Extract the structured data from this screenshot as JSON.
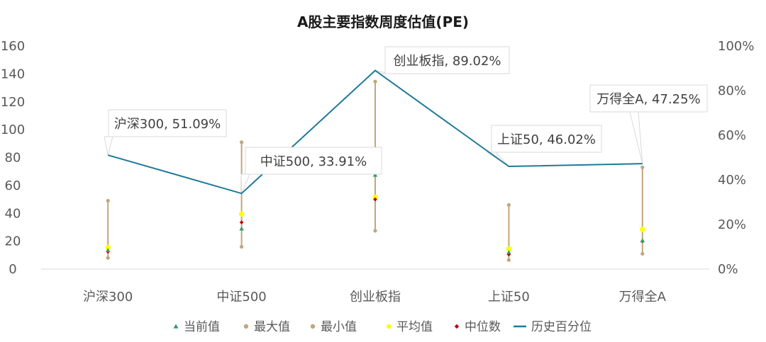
{
  "chart_data": {
    "type": "line",
    "title": "A股主要指数周度估值(PE)",
    "categories": [
      "沪深300",
      "中证500",
      "创业板指",
      "上证50",
      "万得全A"
    ],
    "y_left": {
      "ylim": [
        0,
        160
      ],
      "ticks": [
        "0",
        "20",
        "40",
        "60",
        "80",
        "100",
        "120",
        "140",
        "160"
      ]
    },
    "y_right": {
      "ylim": [
        0,
        100
      ],
      "ticks": [
        "0%",
        "20%",
        "40%",
        "60%",
        "80%",
        "100%"
      ]
    },
    "grid": false,
    "legend_position": "bottom",
    "series": [
      {
        "name": "当前值",
        "axis": "left",
        "marker": "triangle",
        "color": "#2e9e6b",
        "values": [
          13.5,
          29,
          67.5,
          12,
          20.5
        ]
      },
      {
        "name": "最大值",
        "axis": "left",
        "marker": "circle",
        "color": "#c3a67a",
        "values": [
          49,
          91,
          134.5,
          46,
          73
        ]
      },
      {
        "name": "最小值",
        "axis": "left",
        "marker": "circle",
        "color": "#c3a67a",
        "values": [
          8,
          16,
          27.5,
          6.5,
          11
        ]
      },
      {
        "name": "平均值",
        "axis": "left",
        "marker": "circle",
        "color": "#ffff00",
        "values": [
          15.5,
          39.5,
          51.5,
          14.5,
          28.5
        ]
      },
      {
        "name": "中位数",
        "axis": "left",
        "marker": "diamond",
        "color": "#c00000",
        "values": [
          12.5,
          33.5,
          50,
          10.5,
          20
        ]
      },
      {
        "name": "历史百分位",
        "axis": "right",
        "type": "line",
        "color": "#1f7a99",
        "values": [
          51.09,
          33.91,
          89.02,
          46.02,
          47.25
        ]
      }
    ],
    "annotations": [
      "沪深300, 51.09%",
      "中证500, 33.91%",
      "创业板指, 89.02%",
      "上证50, 46.02%",
      "万得全A, 47.25%"
    ]
  }
}
